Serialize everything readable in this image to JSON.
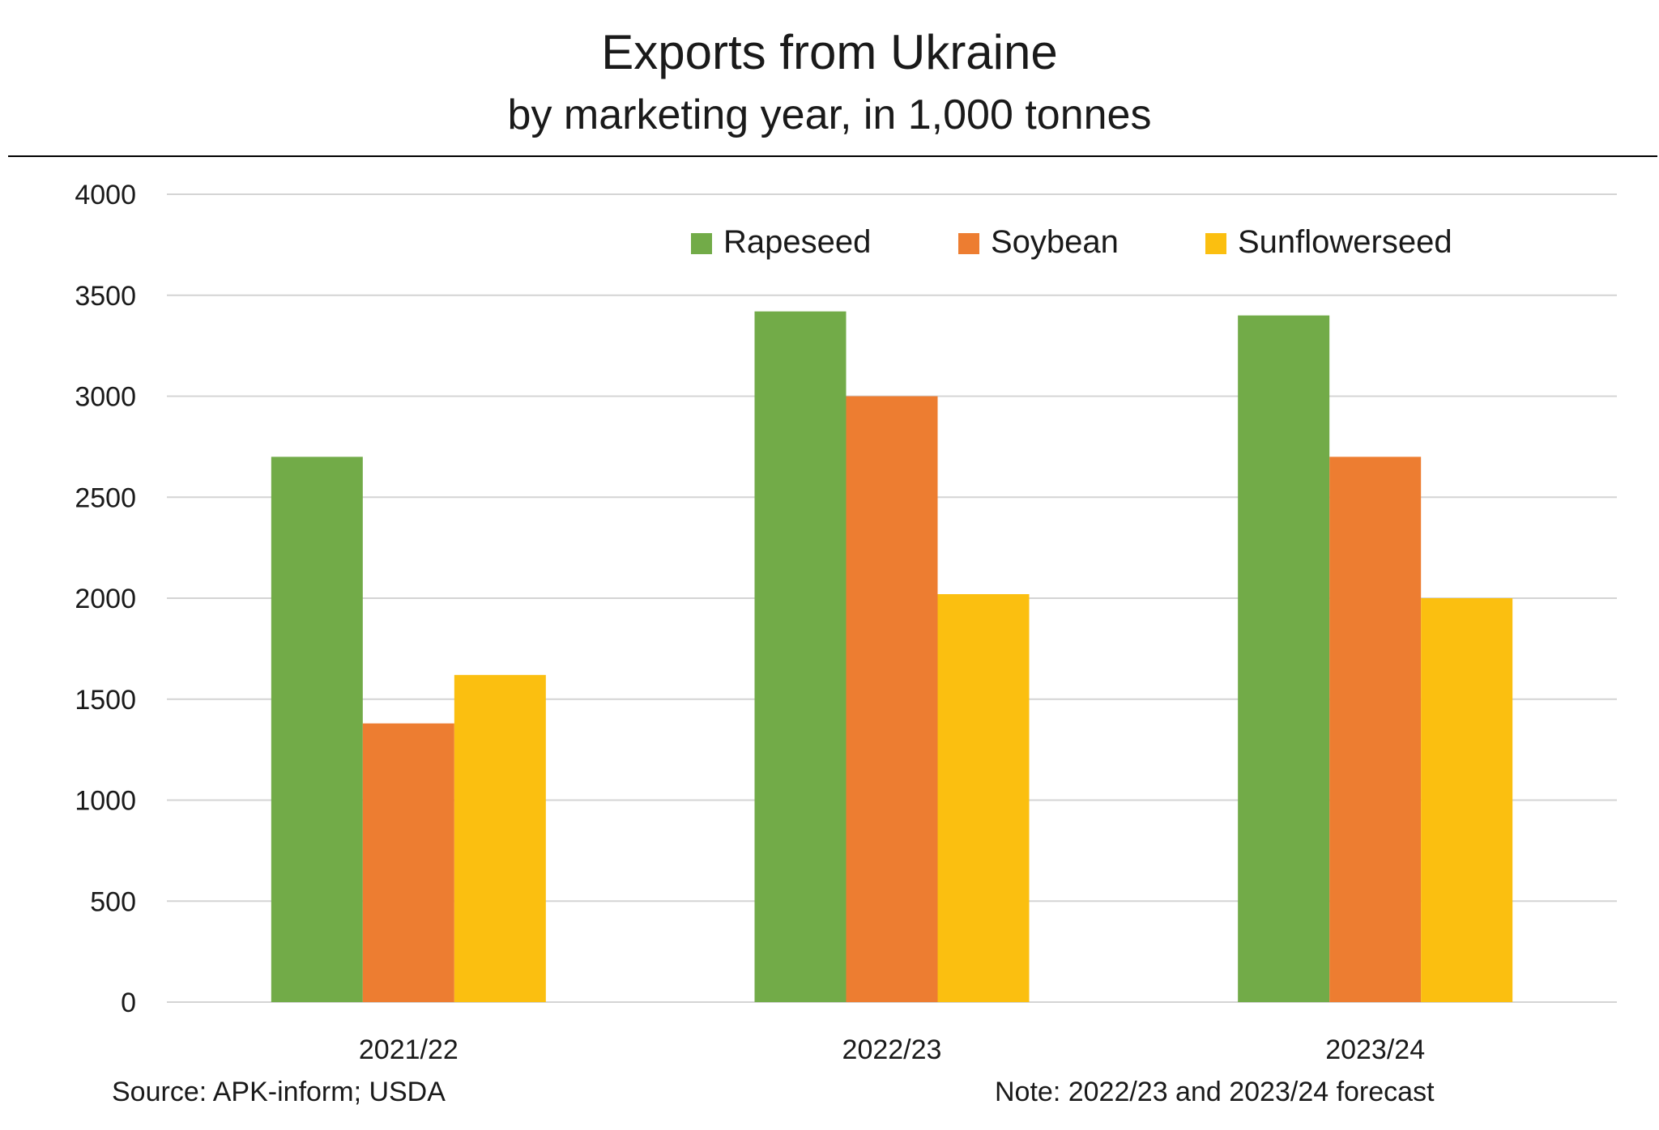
{
  "chart_data": {
    "type": "bar",
    "title": "Exports from Ukraine",
    "subtitle": "by marketing year, in 1,000 tonnes",
    "categories": [
      "2021/22",
      "2022/23",
      "2023/24"
    ],
    "series": [
      {
        "name": "Rapeseed",
        "color": "#72AB48",
        "values": [
          2700,
          3420,
          3400
        ]
      },
      {
        "name": "Soybean",
        "color": "#ED7D31",
        "values": [
          1380,
          3000,
          2700
        ]
      },
      {
        "name": "Sunflowerseed",
        "color": "#FBBF10",
        "values": [
          1620,
          2020,
          2000
        ]
      }
    ],
    "ylim": [
      0,
      4000
    ],
    "yticks": [
      0,
      500,
      1000,
      1500,
      2000,
      2500,
      3000,
      3500,
      4000
    ],
    "grid": true,
    "legend_position": "top-right",
    "source": "Source: APK-inform; USDA",
    "note": "Note: 2022/23 and 2023/24 forecast"
  }
}
